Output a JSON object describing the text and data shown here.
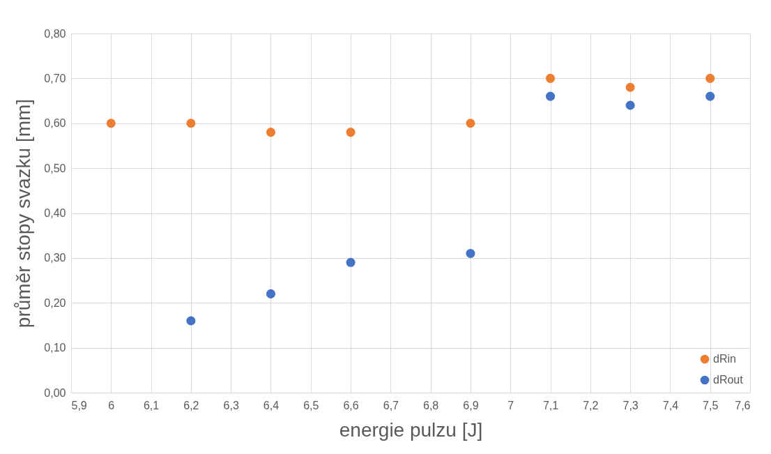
{
  "chart_data": {
    "type": "scatter",
    "xlabel": "energie pulzu [J]",
    "ylabel": "průměr stopy svazku [mm]",
    "series": [
      {
        "name": "dRin",
        "color": "#ed7d31",
        "x": [
          6,
          6.2,
          6.4,
          6.6,
          6.9,
          7.1,
          7.3,
          7.5
        ],
        "values": [
          0.6,
          0.6,
          0.58,
          0.58,
          0.6,
          0.7,
          0.68,
          0.7
        ]
      },
      {
        "name": "dRout",
        "color": "#4472c4",
        "x": [
          6.2,
          6.4,
          6.6,
          6.9,
          7.1,
          7.3,
          7.5
        ],
        "values": [
          0.16,
          0.22,
          0.29,
          0.31,
          0.66,
          0.64,
          0.66
        ]
      }
    ],
    "xlim": [
      5.9,
      7.6
    ],
    "xticks": [
      {
        "value": 5.9,
        "label": "5,9"
      },
      6,
      {
        "value": 6.1,
        "label": "6,1"
      },
      {
        "value": 6.2,
        "label": "6,2"
      },
      {
        "value": 6.3,
        "label": "6,3"
      },
      {
        "value": 6.4,
        "label": "6,4"
      },
      {
        "value": 6.5,
        "label": "6,5"
      },
      {
        "value": 6.6,
        "label": "6,6"
      },
      {
        "value": 6.7,
        "label": "6,7"
      },
      {
        "value": 6.8,
        "label": "6,8"
      },
      {
        "value": 6.9,
        "label": "6,9"
      },
      7,
      {
        "value": 7.1,
        "label": "7,1"
      },
      {
        "value": 7.2,
        "label": "7,2"
      },
      {
        "value": 7.3,
        "label": "7,3"
      },
      {
        "value": 7.4,
        "label": "7,4"
      },
      {
        "value": 7.5,
        "label": "7,5"
      },
      {
        "value": 7.6,
        "label": "7,6"
      }
    ],
    "ylim": [
      0,
      0.8
    ],
    "yticks": [
      {
        "value": 0,
        "label": "0,00"
      },
      {
        "value": 0.1,
        "label": "0,10"
      },
      {
        "value": 0.2,
        "label": "0,20"
      },
      {
        "value": 0.3,
        "label": "0,30"
      },
      {
        "value": 0.4,
        "label": "0,40"
      },
      {
        "value": 0.5,
        "label": "0,50"
      },
      {
        "value": 0.6,
        "label": "0,60"
      },
      {
        "value": 0.7,
        "label": "0,70"
      },
      {
        "value": 0.8,
        "label": "0,80"
      }
    ],
    "grid": true,
    "legend": "bottom right",
    "marker": "circle"
  }
}
